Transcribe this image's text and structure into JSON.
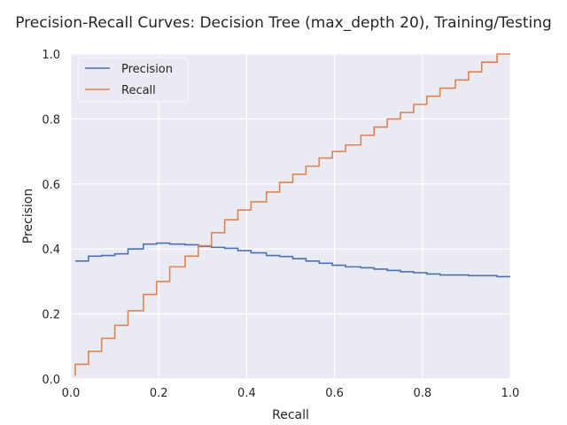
{
  "chart_data": {
    "type": "line",
    "title": "Precision-Recall Curves: Decision Tree (max_depth 20), Training/Testing",
    "xlabel": "Recall",
    "ylabel": "Precision",
    "xlim": [
      0.0,
      1.0
    ],
    "ylim": [
      0.0,
      1.0
    ],
    "xticks": [
      "0.0",
      "0.2",
      "0.4",
      "0.6",
      "0.8",
      "1.0"
    ],
    "yticks": [
      "0.0",
      "0.2",
      "0.4",
      "0.6",
      "0.8",
      "1.0"
    ],
    "grid": true,
    "legend_position": "top-left",
    "step": "post",
    "series": [
      {
        "name": "Precision",
        "color": "#4c72b0",
        "x": [
          0.01,
          0.04,
          0.07,
          0.1,
          0.13,
          0.165,
          0.195,
          0.225,
          0.26,
          0.29,
          0.32,
          0.35,
          0.38,
          0.41,
          0.445,
          0.475,
          0.505,
          0.535,
          0.565,
          0.595,
          0.625,
          0.66,
          0.69,
          0.72,
          0.75,
          0.78,
          0.81,
          0.84,
          0.875,
          0.905,
          0.935,
          0.97,
          1.0
        ],
        "y": [
          0.363,
          0.378,
          0.38,
          0.385,
          0.4,
          0.415,
          0.418,
          0.415,
          0.413,
          0.408,
          0.405,
          0.402,
          0.395,
          0.388,
          0.38,
          0.377,
          0.37,
          0.363,
          0.356,
          0.35,
          0.345,
          0.342,
          0.338,
          0.334,
          0.33,
          0.327,
          0.323,
          0.32,
          0.32,
          0.318,
          0.318,
          0.315,
          0.315
        ]
      },
      {
        "name": "Recall",
        "color": "#dd8452",
        "x": [
          0.01,
          0.04,
          0.07,
          0.1,
          0.13,
          0.165,
          0.195,
          0.225,
          0.26,
          0.29,
          0.32,
          0.35,
          0.38,
          0.41,
          0.445,
          0.475,
          0.505,
          0.535,
          0.565,
          0.595,
          0.625,
          0.66,
          0.69,
          0.72,
          0.75,
          0.78,
          0.81,
          0.84,
          0.875,
          0.905,
          0.935,
          0.97,
          1.0
        ],
        "y": [
          0.045,
          0.085,
          0.125,
          0.165,
          0.21,
          0.26,
          0.3,
          0.345,
          0.378,
          0.41,
          0.45,
          0.49,
          0.52,
          0.545,
          0.575,
          0.605,
          0.63,
          0.655,
          0.68,
          0.7,
          0.72,
          0.75,
          0.775,
          0.8,
          0.82,
          0.845,
          0.87,
          0.895,
          0.92,
          0.945,
          0.975,
          1.0,
          1.0
        ]
      }
    ]
  }
}
